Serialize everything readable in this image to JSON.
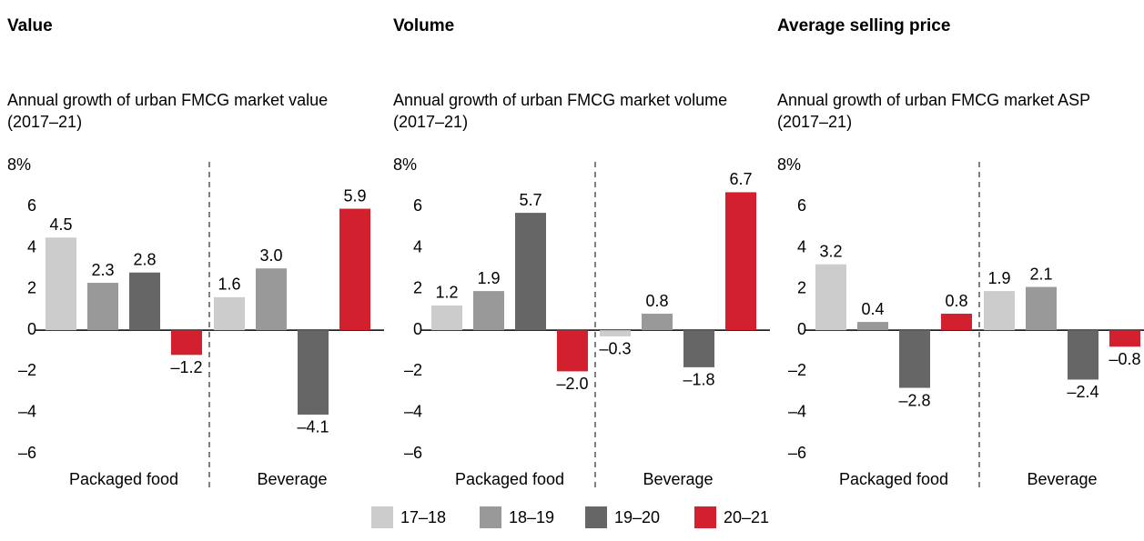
{
  "chart_data": [
    {
      "type": "bar",
      "title": "Value",
      "subtitle": "Annual growth of urban FMCG market value (2017–21)",
      "categories": [
        "Packaged food",
        "Beverage"
      ],
      "series": [
        {
          "name": "17–18",
          "color": "#cccccc",
          "values": [
            4.5,
            1.6
          ],
          "value_labels": [
            "4.5",
            "1.6"
          ]
        },
        {
          "name": "18–19",
          "color": "#999999",
          "values": [
            2.3,
            3.0
          ],
          "value_labels": [
            "2.3",
            "3.0"
          ]
        },
        {
          "name": "19–20",
          "color": "#666666",
          "values": [
            2.8,
            -4.1
          ],
          "value_labels": [
            "2.8",
            "–4.1"
          ]
        },
        {
          "name": "20–21",
          "color": "#d2202f",
          "values": [
            -1.2,
            5.9
          ],
          "value_labels": [
            "–1.2",
            "5.9"
          ]
        }
      ],
      "ylim": [
        -6,
        8
      ],
      "yticks": [
        {
          "value": 8,
          "label": "8%"
        },
        6,
        4,
        2,
        0,
        {
          "value": -2,
          "label": "–2"
        },
        {
          "value": -4,
          "label": "–4"
        },
        {
          "value": -6,
          "label": "–6"
        }
      ]
    },
    {
      "type": "bar",
      "title": "Volume",
      "subtitle": "Annual growth of urban FMCG market volume (2017–21)",
      "categories": [
        "Packaged food",
        "Beverage"
      ],
      "series": [
        {
          "name": "17–18",
          "color": "#cccccc",
          "values": [
            1.2,
            -0.3
          ],
          "value_labels": [
            "1.2",
            "–0.3"
          ]
        },
        {
          "name": "18–19",
          "color": "#999999",
          "values": [
            1.9,
            0.8
          ],
          "value_labels": [
            "1.9",
            "0.8"
          ]
        },
        {
          "name": "19–20",
          "color": "#666666",
          "values": [
            5.7,
            -1.8
          ],
          "value_labels": [
            "5.7",
            "–1.8"
          ]
        },
        {
          "name": "20–21",
          "color": "#d2202f",
          "values": [
            -2.0,
            6.7
          ],
          "value_labels": [
            "–2.0",
            "6.7"
          ]
        }
      ],
      "ylim": [
        -6,
        8
      ],
      "yticks": [
        {
          "value": 8,
          "label": "8%"
        },
        6,
        4,
        2,
        0,
        {
          "value": -2,
          "label": "–2"
        },
        {
          "value": -4,
          "label": "–4"
        },
        {
          "value": -6,
          "label": "–6"
        }
      ]
    },
    {
      "type": "bar",
      "title": "Average selling price",
      "subtitle": "Annual growth of urban FMCG market ASP (2017–21)",
      "categories": [
        "Packaged food",
        "Beverage"
      ],
      "series": [
        {
          "name": "17–18",
          "color": "#cccccc",
          "values": [
            3.2,
            1.9
          ],
          "value_labels": [
            "3.2",
            "1.9"
          ]
        },
        {
          "name": "18–19",
          "color": "#999999",
          "values": [
            0.4,
            2.1
          ],
          "value_labels": [
            "0.4",
            "2.1"
          ]
        },
        {
          "name": "19–20",
          "color": "#666666",
          "values": [
            -2.8,
            -2.4
          ],
          "value_labels": [
            "–2.8",
            "–2.4"
          ]
        },
        {
          "name": "20–21",
          "color": "#d2202f",
          "values": [
            0.8,
            -0.8
          ],
          "value_labels": [
            "0.8",
            "–0.8"
          ]
        }
      ],
      "ylim": [
        -6,
        8
      ],
      "yticks": [
        {
          "value": 8,
          "label": "8%"
        },
        6,
        4,
        2,
        0,
        {
          "value": -2,
          "label": "–2"
        },
        {
          "value": -4,
          "label": "–4"
        },
        {
          "value": -6,
          "label": "–6"
        }
      ]
    }
  ]
}
